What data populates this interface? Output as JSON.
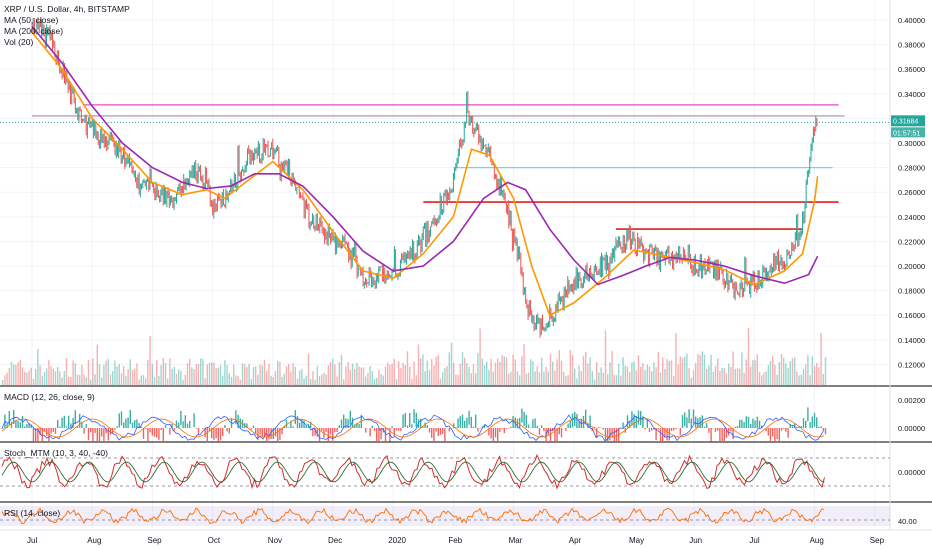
{
  "chart_data": {
    "type": "line",
    "title": "XRP / U.S. Dollar, 4h, BITSTAMP",
    "indicators": [
      "MA (50, close)",
      "MA (200, close)",
      "Vol (20)"
    ],
    "ylim": [
      0.1,
      0.41
    ],
    "y_ticks": [
      "0.40000",
      "0.38000",
      "0.36000",
      "0.34000",
      "0.32000",
      "0.30000",
      "0.28000",
      "0.26000",
      "0.24000",
      "0.22000",
      "0.20000",
      "0.18000",
      "0.16000",
      "0.14000",
      "0.12000"
    ],
    "x_ticks": [
      "Jul",
      "Aug",
      "Sep",
      "Oct",
      "Nov",
      "Dec",
      "2020",
      "Feb",
      "Mar",
      "Apr",
      "May",
      "Jun",
      "Jul",
      "Aug",
      "Sep"
    ],
    "current_price": "0.31684",
    "countdown": "01:57:51",
    "x": [
      "Jul",
      "Aug",
      "Sep",
      "Oct",
      "Nov",
      "Dec",
      "2020",
      "Feb",
      "Mar",
      "Apr",
      "May",
      "Jun",
      "Jul",
      "Aug"
    ],
    "price_keypoints": [
      [
        0.0,
        0.395
      ],
      [
        0.3,
        0.385
      ],
      [
        0.5,
        0.36
      ],
      [
        0.8,
        0.32
      ],
      [
        1.0,
        0.31
      ],
      [
        1.3,
        0.3
      ],
      [
        1.5,
        0.29
      ],
      [
        1.8,
        0.265
      ],
      [
        2.0,
        0.26
      ],
      [
        2.3,
        0.255
      ],
      [
        2.5,
        0.262
      ],
      [
        2.7,
        0.28
      ],
      [
        2.9,
        0.27
      ],
      [
        3.0,
        0.245
      ],
      [
        3.3,
        0.262
      ],
      [
        3.6,
        0.29
      ],
      [
        4.0,
        0.295
      ],
      [
        4.3,
        0.275
      ],
      [
        4.6,
        0.24
      ],
      [
        4.9,
        0.225
      ],
      [
        5.2,
        0.215
      ],
      [
        5.5,
        0.19
      ],
      [
        5.8,
        0.192
      ],
      [
        6.0,
        0.195
      ],
      [
        6.3,
        0.21
      ],
      [
        6.6,
        0.23
      ],
      [
        7.0,
        0.27
      ],
      [
        7.2,
        0.32
      ],
      [
        7.4,
        0.31
      ],
      [
        7.7,
        0.275
      ],
      [
        8.0,
        0.23
      ],
      [
        8.2,
        0.17
      ],
      [
        8.4,
        0.15
      ],
      [
        8.7,
        0.165
      ],
      [
        9.0,
        0.19
      ],
      [
        9.3,
        0.195
      ],
      [
        9.6,
        0.205
      ],
      [
        9.9,
        0.225
      ],
      [
        10.2,
        0.21
      ],
      [
        10.5,
        0.205
      ],
      [
        10.8,
        0.21
      ],
      [
        11.1,
        0.2
      ],
      [
        11.4,
        0.195
      ],
      [
        11.7,
        0.18
      ],
      [
        12.0,
        0.185
      ],
      [
        12.3,
        0.2
      ],
      [
        12.6,
        0.21
      ],
      [
        12.8,
        0.235
      ],
      [
        12.95,
        0.3
      ],
      [
        13.05,
        0.318
      ]
    ],
    "series": [
      {
        "name": "MA (50, close)",
        "color": "#ff9800",
        "points": [
          [
            0.0,
            0.39
          ],
          [
            0.5,
            0.36
          ],
          [
            1.0,
            0.32
          ],
          [
            1.5,
            0.295
          ],
          [
            2.0,
            0.268
          ],
          [
            2.5,
            0.258
          ],
          [
            2.9,
            0.262
          ],
          [
            3.2,
            0.255
          ],
          [
            3.6,
            0.27
          ],
          [
            4.0,
            0.285
          ],
          [
            4.5,
            0.262
          ],
          [
            5.0,
            0.228
          ],
          [
            5.5,
            0.196
          ],
          [
            6.0,
            0.19
          ],
          [
            6.5,
            0.21
          ],
          [
            7.0,
            0.24
          ],
          [
            7.3,
            0.295
          ],
          [
            7.6,
            0.29
          ],
          [
            8.0,
            0.255
          ],
          [
            8.3,
            0.2
          ],
          [
            8.6,
            0.16
          ],
          [
            9.0,
            0.17
          ],
          [
            9.5,
            0.19
          ],
          [
            10.0,
            0.213
          ],
          [
            10.5,
            0.208
          ],
          [
            11.0,
            0.203
          ],
          [
            11.5,
            0.197
          ],
          [
            12.0,
            0.185
          ],
          [
            12.5,
            0.196
          ],
          [
            12.8,
            0.21
          ],
          [
            13.0,
            0.253
          ],
          [
            13.05,
            0.273
          ]
        ]
      },
      {
        "name": "MA (200, close)",
        "color": "#9c27b0",
        "points": [
          [
            0.0,
            0.395
          ],
          [
            0.5,
            0.365
          ],
          [
            1.0,
            0.33
          ],
          [
            1.5,
            0.3
          ],
          [
            2.0,
            0.28
          ],
          [
            2.5,
            0.268
          ],
          [
            2.9,
            0.263
          ],
          [
            3.3,
            0.265
          ],
          [
            3.7,
            0.275
          ],
          [
            4.1,
            0.275
          ],
          [
            4.5,
            0.265
          ],
          [
            5.0,
            0.24
          ],
          [
            5.5,
            0.212
          ],
          [
            6.0,
            0.196
          ],
          [
            6.5,
            0.2
          ],
          [
            7.0,
            0.22
          ],
          [
            7.5,
            0.255
          ],
          [
            7.9,
            0.268
          ],
          [
            8.2,
            0.262
          ],
          [
            8.6,
            0.23
          ],
          [
            9.0,
            0.205
          ],
          [
            9.4,
            0.185
          ],
          [
            9.8,
            0.192
          ],
          [
            10.2,
            0.2
          ],
          [
            10.6,
            0.207
          ],
          [
            11.0,
            0.205
          ],
          [
            11.5,
            0.2
          ],
          [
            12.0,
            0.192
          ],
          [
            12.5,
            0.186
          ],
          [
            12.9,
            0.193
          ],
          [
            13.05,
            0.208
          ]
        ]
      }
    ],
    "horizontal_levels": [
      {
        "value": 0.331,
        "color": "#e64cc6",
        "from": 0.85,
        "to": 13.4
      },
      {
        "value": 0.322,
        "color": "#9e8fa8",
        "from": 0.0,
        "to": 13.5
      },
      {
        "value": 0.28,
        "color": "#66d9e8",
        "from": 7.0,
        "to": 13.3
      },
      {
        "value": 0.252,
        "color": "#e31e1e",
        "from": 6.5,
        "to": 13.4
      },
      {
        "value": 0.23,
        "color": "#e31e1e",
        "from": 9.7,
        "to": 12.8
      }
    ],
    "volume_scale": [
      0,
      1
    ],
    "panes": [
      {
        "name": "MACD (12, 26, close, 9)",
        "ticks": [
          "0.00200",
          "0.00000"
        ]
      },
      {
        "name": "Stoch_MTM (10, 3, 40, -40)",
        "ticks": [
          "0.00000"
        ]
      },
      {
        "name": "RSI (14, close)",
        "ticks": [
          "40.00"
        ]
      }
    ]
  }
}
